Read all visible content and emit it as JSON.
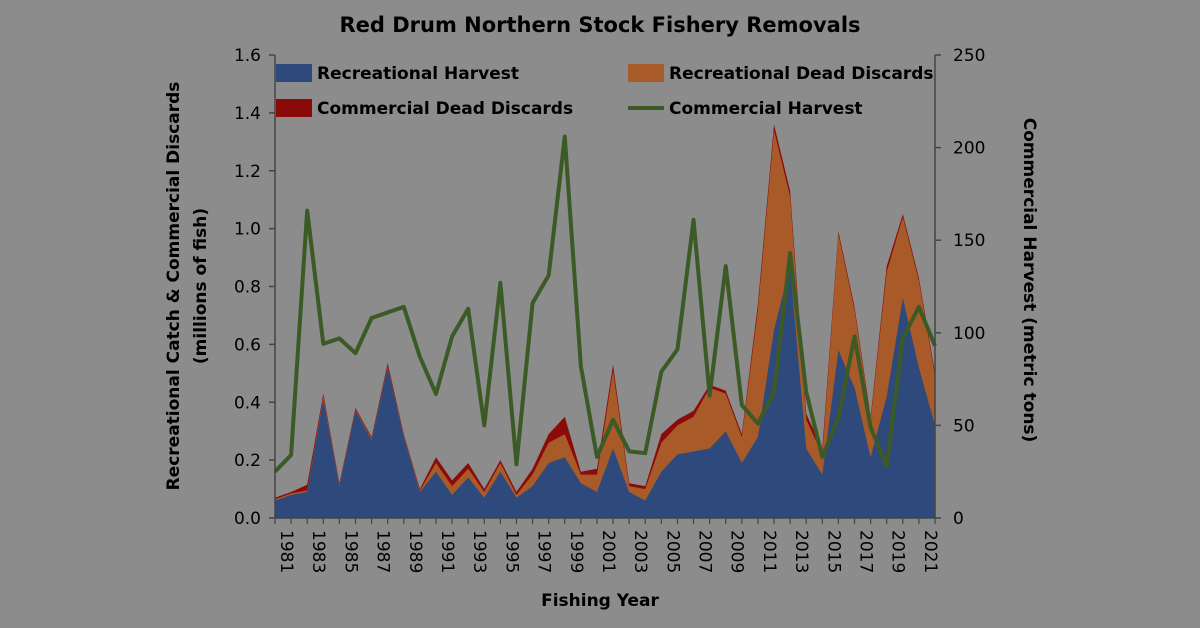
{
  "chart_data": {
    "type": "area",
    "title": "Red Drum Northern Stock Fishery Removals",
    "xlabel": "Fishing Year",
    "ylabel_left_line1": "Recreational Catch & Commercial Discards",
    "ylabel_left_line2": "(millions of fish)",
    "ylabel_right": "Commercial Harvest (metric tons)",
    "y_left_lim": [
      0,
      1.6
    ],
    "y_left_ticks": [
      "0.0",
      "0.2",
      "0.4",
      "0.6",
      "0.8",
      "1.0",
      "1.2",
      "1.4",
      "1.6"
    ],
    "y_right_lim": [
      0,
      250
    ],
    "y_right_ticks": [
      "0",
      "50",
      "100",
      "150",
      "200",
      "250"
    ],
    "x_tick_labels": [
      "1981",
      "1983",
      "1985",
      "1987",
      "1989",
      "1991",
      "1993",
      "1995",
      "1997",
      "1999",
      "2001",
      "2003",
      "2005",
      "2007",
      "2009",
      "2011",
      "2013",
      "2015",
      "2017",
      "2019",
      "2021"
    ],
    "years": [
      1981,
      1982,
      1983,
      1984,
      1985,
      1986,
      1987,
      1988,
      1989,
      1990,
      1991,
      1992,
      1993,
      1994,
      1995,
      1996,
      1997,
      1998,
      1999,
      2000,
      2001,
      2002,
      2003,
      2004,
      2005,
      2006,
      2007,
      2008,
      2009,
      2010,
      2011,
      2012,
      2013,
      2014,
      2015,
      2016,
      2017,
      2018,
      2019,
      2020,
      2021,
      2022
    ],
    "legend_position": "top",
    "series": [
      {
        "name": "Recreational Harvest",
        "type": "stacked-area",
        "color": "#2e4a7c",
        "values": [
          0.06,
          0.08,
          0.09,
          0.41,
          0.11,
          0.37,
          0.27,
          0.52,
          0.28,
          0.09,
          0.16,
          0.08,
          0.14,
          0.07,
          0.16,
          0.07,
          0.11,
          0.19,
          0.21,
          0.12,
          0.09,
          0.24,
          0.09,
          0.06,
          0.16,
          0.22,
          0.23,
          0.24,
          0.3,
          0.19,
          0.28,
          0.65,
          0.87,
          0.24,
          0.15,
          0.58,
          0.45,
          0.21,
          0.42,
          0.76,
          0.52,
          0.32
        ]
      },
      {
        "name": "Recreational Dead Discards",
        "type": "stacked-area",
        "color": "#a85a28",
        "values": [
          0.005,
          0.005,
          0.005,
          0.01,
          0.005,
          0.005,
          0.005,
          0.005,
          0.005,
          0.005,
          0.03,
          0.03,
          0.03,
          0.02,
          0.03,
          0.01,
          0.04,
          0.07,
          0.08,
          0.03,
          0.06,
          0.27,
          0.02,
          0.04,
          0.1,
          0.1,
          0.12,
          0.21,
          0.13,
          0.09,
          0.44,
          0.69,
          0.24,
          0.1,
          0.07,
          0.4,
          0.27,
          0.13,
          0.43,
          0.28,
          0.3,
          0.17
        ]
      },
      {
        "name": "Commercial Dead Discards",
        "type": "stacked-area",
        "color": "#8b0a0a",
        "values": [
          0.005,
          0.005,
          0.02,
          0.01,
          0.005,
          0.005,
          0.005,
          0.01,
          0.005,
          0.005,
          0.02,
          0.02,
          0.02,
          0.01,
          0.01,
          0.01,
          0.02,
          0.03,
          0.06,
          0.01,
          0.02,
          0.02,
          0.01,
          0.01,
          0.03,
          0.02,
          0.02,
          0.01,
          0.01,
          0.01,
          0.02,
          0.02,
          0.02,
          0.02,
          0.02,
          0.01,
          0.01,
          0.01,
          0.02,
          0.01,
          0.01,
          0.01
        ]
      },
      {
        "name": "Commercial Harvest",
        "type": "line",
        "axis": "right",
        "color": "#3b5a26",
        "values": [
          25,
          34,
          166,
          94,
          97,
          89,
          108,
          111,
          114,
          87,
          67,
          98,
          113,
          50,
          127,
          29,
          116,
          131,
          206,
          82,
          33,
          53,
          36,
          35,
          79,
          91,
          161,
          66,
          136,
          61,
          51,
          68,
          143,
          68,
          33,
          54,
          98,
          49,
          28,
          97,
          114,
          93
        ]
      }
    ]
  }
}
